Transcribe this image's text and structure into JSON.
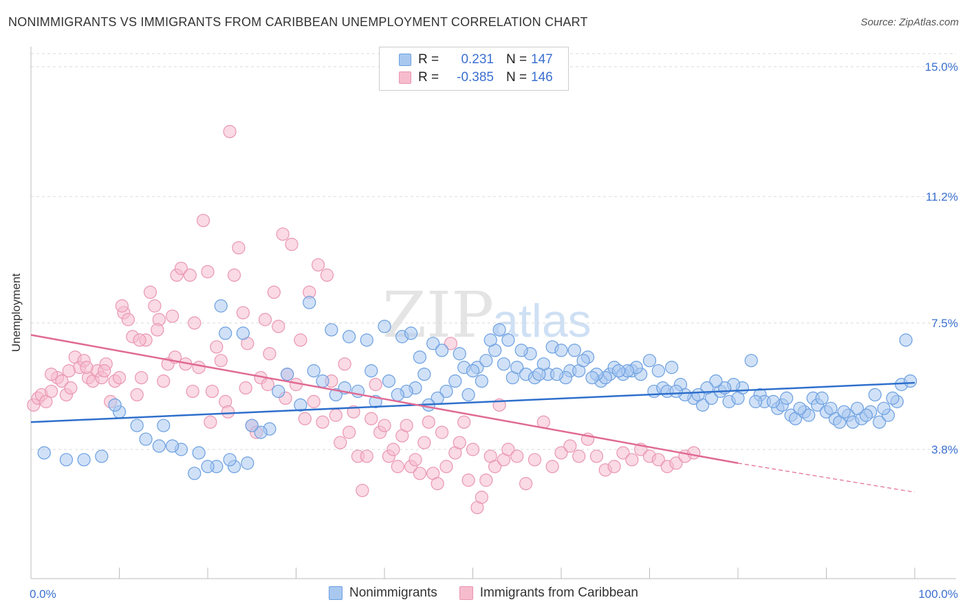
{
  "title": "NONIMMIGRANTS VS IMMIGRANTS FROM CARIBBEAN UNEMPLOYMENT CORRELATION CHART",
  "source": "Source: ZipAtlas.com",
  "watermark": {
    "zip": "ZIP",
    "atlas": "atlas"
  },
  "legend_top": {
    "r_label": "R =",
    "n_label": "N =",
    "rows": [
      {
        "r": "0.231",
        "n": "147"
      },
      {
        "r": "-0.385",
        "n": "146"
      }
    ]
  },
  "colors": {
    "blue_fill": "#a9c8f0",
    "blue_stroke": "#6a9ee0",
    "blue_line": "#2e6fcc",
    "pink_fill": "#f6bccd",
    "pink_stroke": "#e995b1",
    "pink_line": "#e06a94",
    "tick_label": "#3a6fd0",
    "grid": "#d8d8d8"
  },
  "chart_data": {
    "type": "scatter",
    "title": "NONIMMIGRANTS VS IMMIGRANTS FROM CARIBBEAN UNEMPLOYMENT CORRELATION CHART",
    "xlabel": "",
    "ylabel": "Unemployment",
    "xlim": [
      0,
      100
    ],
    "ylim": [
      0,
      15.5
    ],
    "y_ticks": [
      {
        "value": 3.8,
        "label": "3.8%"
      },
      {
        "value": 7.5,
        "label": "7.5%"
      },
      {
        "value": 11.2,
        "label": "11.2%"
      },
      {
        "value": 15.0,
        "label": "15.0%"
      }
    ],
    "x_tick_labels": {
      "min": "0.0%",
      "max": "100.0%"
    },
    "x_tick_count": 11,
    "grid": "horizontal dashed",
    "legend_position": "top-center",
    "series": [
      {
        "name": "Nonimmigrants",
        "color": "blue",
        "R": 0.231,
        "N": 147,
        "trend": {
          "x": [
            0,
            100
          ],
          "y": [
            4.6,
            5.75
          ],
          "dashed_from": null
        },
        "points": [
          [
            21.5,
            8.0
          ],
          [
            22.0,
            7.2
          ],
          [
            24.0,
            7.2
          ],
          [
            31.5,
            8.1
          ],
          [
            34.0,
            7.3
          ],
          [
            36.0,
            7.1
          ],
          [
            38.0,
            7.0
          ],
          [
            40.0,
            7.4
          ],
          [
            42.0,
            7.1
          ],
          [
            43.0,
            7.2
          ],
          [
            44.0,
            6.5
          ],
          [
            45.5,
            6.9
          ],
          [
            46.5,
            6.7
          ],
          [
            48.5,
            6.6
          ],
          [
            49.0,
            6.2
          ],
          [
            50.5,
            6.2
          ],
          [
            51.5,
            6.4
          ],
          [
            52.5,
            6.7
          ],
          [
            53.5,
            6.3
          ],
          [
            54.5,
            5.9
          ],
          [
            55.0,
            6.2
          ],
          [
            56.0,
            6.0
          ],
          [
            57.0,
            5.9
          ],
          [
            58.5,
            6.0
          ],
          [
            59.0,
            6.8
          ],
          [
            60.0,
            6.7
          ],
          [
            61.0,
            6.1
          ],
          [
            62.0,
            6.1
          ],
          [
            63.0,
            6.5
          ],
          [
            64.5,
            5.8
          ],
          [
            65.5,
            6.0
          ],
          [
            66.0,
            6.2
          ],
          [
            67.0,
            6.0
          ],
          [
            68.0,
            6.1
          ],
          [
            69.0,
            6.0
          ],
          [
            70.5,
            5.5
          ],
          [
            71.5,
            5.6
          ],
          [
            72.0,
            5.5
          ],
          [
            73.5,
            5.7
          ],
          [
            75.0,
            5.3
          ],
          [
            76.0,
            5.1
          ],
          [
            77.0,
            5.3
          ],
          [
            78.0,
            5.5
          ],
          [
            79.0,
            5.2
          ],
          [
            80.5,
            5.6
          ],
          [
            81.5,
            6.4
          ],
          [
            82.5,
            5.4
          ],
          [
            83.0,
            5.2
          ],
          [
            84.5,
            5.0
          ],
          [
            85.0,
            5.1
          ],
          [
            86.0,
            4.8
          ],
          [
            86.5,
            4.7
          ],
          [
            87.5,
            4.9
          ],
          [
            88.5,
            5.3
          ],
          [
            89.0,
            5.1
          ],
          [
            90.0,
            4.9
          ],
          [
            91.0,
            4.7
          ],
          [
            91.5,
            4.6
          ],
          [
            92.5,
            4.8
          ],
          [
            93.0,
            4.6
          ],
          [
            94.0,
            4.7
          ],
          [
            95.0,
            4.9
          ],
          [
            96.0,
            4.6
          ],
          [
            97.0,
            4.8
          ],
          [
            98.0,
            5.2
          ],
          [
            99.0,
            7.0
          ],
          [
            98.5,
            5.7
          ],
          [
            99.5,
            5.8
          ],
          [
            97.5,
            5.3
          ],
          [
            96.5,
            5.0
          ],
          [
            95.5,
            5.4
          ],
          [
            94.5,
            4.8
          ],
          [
            93.5,
            5.0
          ],
          [
            92.0,
            4.9
          ],
          [
            90.5,
            5.0
          ],
          [
            89.5,
            5.3
          ],
          [
            88.0,
            4.8
          ],
          [
            87.0,
            5.0
          ],
          [
            85.5,
            5.3
          ],
          [
            84.0,
            5.2
          ],
          [
            82.0,
            5.2
          ],
          [
            80.0,
            5.3
          ],
          [
            79.5,
            5.7
          ],
          [
            78.5,
            5.6
          ],
          [
            77.5,
            5.8
          ],
          [
            76.5,
            5.6
          ],
          [
            75.5,
            5.4
          ],
          [
            74.0,
            5.4
          ],
          [
            73.0,
            5.5
          ],
          [
            72.5,
            6.2
          ],
          [
            71.0,
            6.1
          ],
          [
            70.0,
            6.4
          ],
          [
            68.5,
            6.2
          ],
          [
            67.5,
            6.1
          ],
          [
            66.5,
            6.1
          ],
          [
            65.0,
            5.9
          ],
          [
            64.0,
            6.0
          ],
          [
            63.5,
            5.9
          ],
          [
            62.5,
            6.4
          ],
          [
            61.5,
            6.7
          ],
          [
            60.5,
            5.9
          ],
          [
            59.5,
            6.0
          ],
          [
            58.0,
            6.3
          ],
          [
            57.5,
            6.0
          ],
          [
            56.5,
            6.6
          ],
          [
            55.5,
            6.7
          ],
          [
            54.0,
            7.0
          ],
          [
            53.0,
            7.3
          ],
          [
            52.0,
            7.0
          ],
          [
            51.0,
            5.8
          ],
          [
            50.0,
            6.1
          ],
          [
            49.5,
            5.4
          ],
          [
            48.0,
            5.8
          ],
          [
            47.0,
            5.5
          ],
          [
            46.0,
            5.3
          ],
          [
            45.0,
            5.1
          ],
          [
            44.5,
            6.0
          ],
          [
            43.5,
            5.6
          ],
          [
            42.5,
            5.5
          ],
          [
            41.5,
            5.4
          ],
          [
            40.5,
            5.8
          ],
          [
            39.0,
            5.2
          ],
          [
            38.5,
            6.1
          ],
          [
            37.0,
            5.5
          ],
          [
            35.5,
            5.6
          ],
          [
            34.5,
            5.4
          ],
          [
            33.0,
            5.8
          ],
          [
            32.0,
            6.1
          ],
          [
            30.5,
            5.1
          ],
          [
            29.0,
            6.0
          ],
          [
            28.0,
            5.5
          ],
          [
            27.0,
            4.4
          ],
          [
            26.0,
            4.3
          ],
          [
            25.0,
            4.5
          ],
          [
            24.5,
            3.4
          ],
          [
            23.0,
            3.3
          ],
          [
            22.5,
            3.5
          ],
          [
            21.0,
            3.3
          ],
          [
            20.0,
            3.3
          ],
          [
            19.0,
            3.7
          ],
          [
            18.5,
            3.1
          ],
          [
            17.0,
            3.8
          ],
          [
            16.0,
            3.9
          ],
          [
            15.0,
            4.5
          ],
          [
            14.5,
            3.9
          ],
          [
            13.0,
            4.1
          ],
          [
            12.0,
            4.5
          ],
          [
            10.0,
            4.9
          ],
          [
            9.5,
            5.1
          ],
          [
            8.0,
            3.6
          ],
          [
            6.0,
            3.5
          ],
          [
            4.0,
            3.5
          ],
          [
            1.5,
            3.7
          ]
        ],
        "note": "x measured left to right as percent of axis"
      },
      {
        "name": "Immigrants from Caribbean",
        "color": "pink",
        "R": -0.385,
        "N": 146,
        "trend": {
          "x": [
            0,
            80,
            100
          ],
          "y": [
            7.15,
            3.4,
            2.55
          ],
          "dashed_from": 80
        },
        "points": [
          [
            0.3,
            5.1
          ],
          [
            0.8,
            5.3
          ],
          [
            1.2,
            5.4
          ],
          [
            1.7,
            5.2
          ],
          [
            2.3,
            5.5
          ],
          [
            3.0,
            5.9
          ],
          [
            3.5,
            5.8
          ],
          [
            4.0,
            5.4
          ],
          [
            4.5,
            5.6
          ],
          [
            5.0,
            6.5
          ],
          [
            5.5,
            6.2
          ],
          [
            6.0,
            6.4
          ],
          [
            6.5,
            5.9
          ],
          [
            7.0,
            5.8
          ],
          [
            7.5,
            6.1
          ],
          [
            8.0,
            5.9
          ],
          [
            8.5,
            6.3
          ],
          [
            9.0,
            5.2
          ],
          [
            9.5,
            5.8
          ],
          [
            10.0,
            5.9
          ],
          [
            10.5,
            7.8
          ],
          [
            11.0,
            7.6
          ],
          [
            11.5,
            7.1
          ],
          [
            12.0,
            5.4
          ],
          [
            12.5,
            5.9
          ],
          [
            13.0,
            7.0
          ],
          [
            13.5,
            8.4
          ],
          [
            14.0,
            8.0
          ],
          [
            14.5,
            7.6
          ],
          [
            15.0,
            5.8
          ],
          [
            15.5,
            6.3
          ],
          [
            16.0,
            7.7
          ],
          [
            16.5,
            8.9
          ],
          [
            17.0,
            9.1
          ],
          [
            17.5,
            6.3
          ],
          [
            18.0,
            8.9
          ],
          [
            18.5,
            7.5
          ],
          [
            19.0,
            6.2
          ],
          [
            19.5,
            10.5
          ],
          [
            20.0,
            9.0
          ],
          [
            20.5,
            5.5
          ],
          [
            21.0,
            6.8
          ],
          [
            21.5,
            6.4
          ],
          [
            22.0,
            5.2
          ],
          [
            22.5,
            13.1
          ],
          [
            23.0,
            8.9
          ],
          [
            23.5,
            9.7
          ],
          [
            24.0,
            7.8
          ],
          [
            24.5,
            6.9
          ],
          [
            25.0,
            4.5
          ],
          [
            25.5,
            4.3
          ],
          [
            26.0,
            5.9
          ],
          [
            26.5,
            7.6
          ],
          [
            27.0,
            6.6
          ],
          [
            27.5,
            8.4
          ],
          [
            28.0,
            7.4
          ],
          [
            28.5,
            10.1
          ],
          [
            29.0,
            6.0
          ],
          [
            29.5,
            9.8
          ],
          [
            30.0,
            5.7
          ],
          [
            30.5,
            7.0
          ],
          [
            31.0,
            4.7
          ],
          [
            31.5,
            8.4
          ],
          [
            32.0,
            5.2
          ],
          [
            32.5,
            9.2
          ],
          [
            33.0,
            4.6
          ],
          [
            33.5,
            8.9
          ],
          [
            34.0,
            5.8
          ],
          [
            34.5,
            4.8
          ],
          [
            35.0,
            4.0
          ],
          [
            35.5,
            6.3
          ],
          [
            36.0,
            4.3
          ],
          [
            36.5,
            4.9
          ],
          [
            37.0,
            3.6
          ],
          [
            37.5,
            2.6
          ],
          [
            38.0,
            3.6
          ],
          [
            38.5,
            4.7
          ],
          [
            39.0,
            5.7
          ],
          [
            39.5,
            4.3
          ],
          [
            40.0,
            4.5
          ],
          [
            40.5,
            3.6
          ],
          [
            41.0,
            3.8
          ],
          [
            41.5,
            3.3
          ],
          [
            42.0,
            4.2
          ],
          [
            42.5,
            4.5
          ],
          [
            43.0,
            3.3
          ],
          [
            43.5,
            3.5
          ],
          [
            44.0,
            3.1
          ],
          [
            44.5,
            4.0
          ],
          [
            45.0,
            4.6
          ],
          [
            45.5,
            3.1
          ],
          [
            46.0,
            2.8
          ],
          [
            46.5,
            4.3
          ],
          [
            47.0,
            3.3
          ],
          [
            47.5,
            6.9
          ],
          [
            48.0,
            3.7
          ],
          [
            48.5,
            4.0
          ],
          [
            49.0,
            4.6
          ],
          [
            49.5,
            2.9
          ],
          [
            50.0,
            3.8
          ],
          [
            50.5,
            2.1
          ],
          [
            51.0,
            2.4
          ],
          [
            51.5,
            2.9
          ],
          [
            52.0,
            3.6
          ],
          [
            52.5,
            3.3
          ],
          [
            53.0,
            5.1
          ],
          [
            53.5,
            3.5
          ],
          [
            54.0,
            3.8
          ],
          [
            55.0,
            3.6
          ],
          [
            56.0,
            2.8
          ],
          [
            57.0,
            3.5
          ],
          [
            58.0,
            4.6
          ],
          [
            59.0,
            3.3
          ],
          [
            60.0,
            3.7
          ],
          [
            61.0,
            3.9
          ],
          [
            62.0,
            3.6
          ],
          [
            63.0,
            4.1
          ],
          [
            64.0,
            3.6
          ],
          [
            65.0,
            3.2
          ],
          [
            66.0,
            3.3
          ],
          [
            67.0,
            3.7
          ],
          [
            68.0,
            3.5
          ],
          [
            69.0,
            3.8
          ],
          [
            70.0,
            3.6
          ],
          [
            71.0,
            3.5
          ],
          [
            72.0,
            3.3
          ],
          [
            73.0,
            3.4
          ],
          [
            74.0,
            3.6
          ],
          [
            75.0,
            3.7
          ],
          [
            28.8,
            5.3
          ],
          [
            26.8,
            5.7
          ],
          [
            24.3,
            5.6
          ],
          [
            22.3,
            4.9
          ],
          [
            20.3,
            4.6
          ],
          [
            18.3,
            5.5
          ],
          [
            16.3,
            6.5
          ],
          [
            14.3,
            7.3
          ],
          [
            12.3,
            7.0
          ],
          [
            10.3,
            8.0
          ],
          [
            8.3,
            6.1
          ],
          [
            6.3,
            6.2
          ],
          [
            4.3,
            6.1
          ],
          [
            2.3,
            6.0
          ]
        ],
        "note": "x measured left to right as percent of axis"
      }
    ]
  },
  "legend_bottom": [
    {
      "label": "Nonimmigrants",
      "color": "blue"
    },
    {
      "label": "Immigrants from Caribbean",
      "color": "pink"
    }
  ]
}
